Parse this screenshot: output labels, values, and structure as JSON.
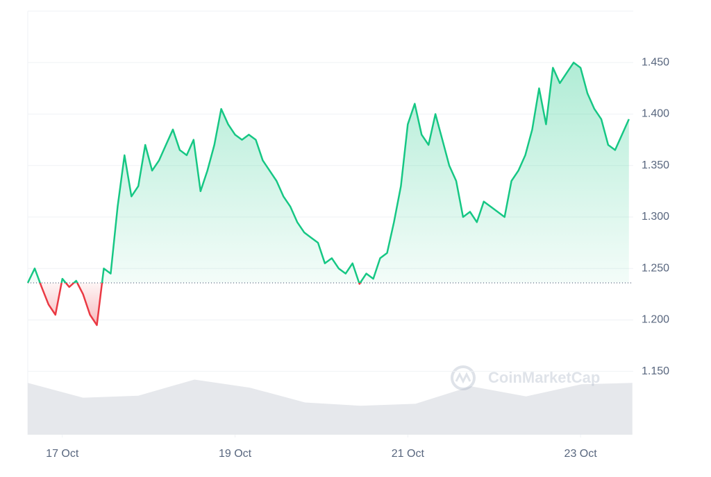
{
  "chart_data": {
    "type": "line",
    "watermark": "CoinMarketCap",
    "x": [
      16.6,
      16.68,
      16.76,
      16.84,
      16.92,
      17,
      17.08,
      17.16,
      17.24,
      17.32,
      17.4,
      17.48,
      17.56,
      17.64,
      17.72,
      17.8,
      17.88,
      17.96,
      18.04,
      18.12,
      18.2,
      18.28,
      18.36,
      18.44,
      18.52,
      18.6,
      18.68,
      18.76,
      18.84,
      18.92,
      19,
      19.08,
      19.16,
      19.24,
      19.32,
      19.4,
      19.48,
      19.56,
      19.64,
      19.72,
      19.8,
      19.88,
      19.96,
      20.04,
      20.12,
      20.2,
      20.28,
      20.36,
      20.44,
      20.52,
      20.6,
      20.68,
      20.76,
      20.84,
      20.92,
      21,
      21.08,
      21.16,
      21.24,
      21.32,
      21.4,
      21.48,
      21.56,
      21.64,
      21.72,
      21.8,
      21.88,
      21.96,
      22.04,
      22.12,
      22.2,
      22.28,
      22.36,
      22.44,
      22.52,
      22.6,
      22.68,
      22.76,
      22.84,
      22.92,
      23,
      23.08,
      23.16,
      23.24,
      23.32,
      23.4,
      23.48,
      23.56
    ],
    "values": [
      1.236,
      1.25,
      1.232,
      1.215,
      1.205,
      1.24,
      1.232,
      1.238,
      1.225,
      1.205,
      1.195,
      1.25,
      1.245,
      1.31,
      1.36,
      1.32,
      1.33,
      1.37,
      1.345,
      1.355,
      1.37,
      1.385,
      1.365,
      1.36,
      1.375,
      1.325,
      1.345,
      1.37,
      1.405,
      1.39,
      1.38,
      1.375,
      1.38,
      1.375,
      1.355,
      1.345,
      1.335,
      1.32,
      1.31,
      1.295,
      1.285,
      1.28,
      1.275,
      1.255,
      1.26,
      1.25,
      1.245,
      1.255,
      1.235,
      1.245,
      1.24,
      1.26,
      1.265,
      1.295,
      1.33,
      1.39,
      1.41,
      1.38,
      1.37,
      1.4,
      1.375,
      1.35,
      1.335,
      1.3,
      1.305,
      1.295,
      1.315,
      1.31,
      1.305,
      1.3,
      1.335,
      1.345,
      1.36,
      1.385,
      1.425,
      1.39,
      1.445,
      1.43,
      1.44,
      1.45,
      1.445,
      1.42,
      1.405,
      1.395,
      1.37,
      1.365,
      1.38,
      1.395
    ],
    "up_color": "#16c784",
    "down_color": "#ea3943",
    "volume": {
      "x": [
        16.6,
        17.24,
        17.88,
        18.53,
        19.17,
        19.81,
        20.45,
        21.09,
        21.73,
        22.37,
        23.01,
        23.6
      ],
      "values": [
        77,
        55,
        58,
        82,
        70,
        48,
        43,
        46,
        72,
        57,
        75,
        77
      ],
      "ylim": [
        0,
        100
      ],
      "color": "#e6e8ec"
    },
    "xlim": [
      16.6,
      23.61
    ],
    "xticks": [
      {
        "value": 17,
        "label": "17 Oct"
      },
      {
        "value": 19,
        "label": "19 Oct"
      },
      {
        "value": 21,
        "label": "21 Oct"
      },
      {
        "value": 23,
        "label": "23 Oct"
      }
    ],
    "ylim": [
      1.0885,
      1.5
    ],
    "yticks": [
      {
        "value": 1.15,
        "label": "1.150"
      },
      {
        "value": 1.2,
        "label": "1.200"
      },
      {
        "value": 1.25,
        "label": "1.250"
      },
      {
        "value": 1.3,
        "label": "1.300"
      },
      {
        "value": 1.35,
        "label": "1.350"
      },
      {
        "value": 1.4,
        "label": "1.400"
      },
      {
        "value": 1.45,
        "label": "1.450"
      }
    ],
    "grid": true
  }
}
